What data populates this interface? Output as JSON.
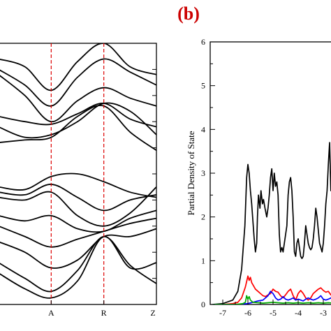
{
  "panel_label": "(b)",
  "chart_data": [
    {
      "type": "line",
      "title": "",
      "xlabel": "",
      "ylabel": "",
      "x_ticks": [
        "A",
        "R",
        "Z"
      ],
      "k_positions": {
        "A": 1,
        "R": 2,
        "Z": 3
      },
      "x_range": [
        0,
        3
      ],
      "y_range": [
        0,
        10
      ],
      "vertical_markers": [
        "A",
        "R"
      ],
      "marker_color": "#dd0000",
      "band_color": "#000000",
      "series": [
        {
          "x": [
            0,
            0.5,
            1,
            1.5,
            2,
            2.5,
            3
          ],
          "values": [
            9.4,
            9.1,
            8.2,
            9.3,
            10.0,
            9.1,
            8.8
          ]
        },
        {
          "x": [
            0,
            0.5,
            1,
            1.5,
            2,
            2.5,
            3
          ],
          "values": [
            9.0,
            8.4,
            7.6,
            8.7,
            9.4,
            8.9,
            8.4
          ]
        },
        {
          "x": [
            0,
            0.5,
            1,
            1.5,
            2,
            2.5,
            3
          ],
          "values": [
            8.8,
            8.0,
            7.0,
            7.8,
            8.3,
            7.9,
            7.6
          ]
        },
        {
          "x": [
            0,
            0.5,
            1,
            1.5,
            2,
            2.5,
            3
          ],
          "values": [
            7.2,
            7.0,
            6.9,
            7.3,
            7.7,
            7.1,
            6.8
          ]
        },
        {
          "x": [
            0,
            0.5,
            1,
            1.5,
            2,
            2.5,
            3
          ],
          "values": [
            6.8,
            6.4,
            6.5,
            7.0,
            7.7,
            7.4,
            6.5
          ]
        },
        {
          "x": [
            0,
            0.5,
            1,
            1.5,
            2,
            2.5,
            3
          ],
          "values": [
            6.2,
            6.3,
            6.4,
            7.2,
            7.6,
            6.6,
            5.9
          ]
        },
        {
          "x": [
            0,
            0.5,
            1,
            1.5,
            2,
            2.5,
            3
          ],
          "values": [
            4.5,
            4.4,
            4.9,
            5.0,
            4.7,
            4.3,
            4.1
          ]
        },
        {
          "x": [
            0,
            0.5,
            1,
            1.5,
            2,
            2.5,
            3
          ],
          "values": [
            4.3,
            4.2,
            4.6,
            4.1,
            3.6,
            4.0,
            4.2
          ]
        },
        {
          "x": [
            0,
            0.5,
            1,
            1.5,
            2,
            2.5,
            3
          ],
          "values": [
            4.1,
            4.0,
            4.3,
            3.4,
            3.0,
            3.5,
            4.5
          ]
        },
        {
          "x": [
            0,
            0.5,
            1,
            1.5,
            2,
            2.5,
            3
          ],
          "values": [
            3.4,
            3.2,
            3.4,
            2.9,
            2.8,
            3.3,
            3.6
          ]
        },
        {
          "x": [
            0,
            0.5,
            1,
            1.5,
            2,
            2.5,
            3
          ],
          "values": [
            3.0,
            2.6,
            2.2,
            2.5,
            2.8,
            3.1,
            3.3
          ]
        },
        {
          "x": [
            0,
            0.5,
            1,
            1.5,
            2,
            2.5,
            3
          ],
          "values": [
            2.4,
            2.0,
            1.4,
            1.7,
            2.6,
            2.6,
            2.9
          ]
        },
        {
          "x": [
            0,
            0.5,
            1,
            1.5,
            2,
            2.5,
            3
          ],
          "values": [
            1.6,
            1.0,
            0.5,
            1.3,
            2.6,
            1.5,
            0.8
          ]
        },
        {
          "x": [
            0,
            0.5,
            1,
            1.5,
            2,
            2.5,
            3
          ],
          "values": [
            1.2,
            0.6,
            0.25,
            0.9,
            2.6,
            1.4,
            1.6
          ]
        }
      ]
    },
    {
      "type": "line",
      "title": "",
      "xlabel": "",
      "ylabel": "Partial Density of State",
      "x_ticks": [
        -7,
        -6,
        -5,
        -4,
        -3
      ],
      "y_ticks": [
        0,
        1,
        2,
        3,
        4,
        5,
        6
      ],
      "xlim": [
        -7.5,
        -2.5
      ],
      "ylim": [
        0,
        6
      ],
      "grid": false,
      "series": [
        {
          "color": "#000000",
          "x": [
            -7.4,
            -7.0,
            -6.6,
            -6.4,
            -6.25,
            -6.12,
            -6.05,
            -6.0,
            -5.95,
            -5.9,
            -5.85,
            -5.8,
            -5.75,
            -5.7,
            -5.65,
            -5.62,
            -5.58,
            -5.52,
            -5.48,
            -5.42,
            -5.38,
            -5.32,
            -5.25,
            -5.2,
            -5.15,
            -5.1,
            -5.05,
            -5.0,
            -4.95,
            -4.9,
            -4.85,
            -4.8,
            -4.75,
            -4.7,
            -4.65,
            -4.6,
            -4.55,
            -4.5,
            -4.45,
            -4.4,
            -4.35,
            -4.3,
            -4.25,
            -4.2,
            -4.15,
            -4.1,
            -4.05,
            -4.0,
            -3.95,
            -3.9,
            -3.85,
            -3.8,
            -3.75,
            -3.7,
            -3.65,
            -3.6,
            -3.55,
            -3.5,
            -3.45,
            -3.4,
            -3.35,
            -3.3,
            -3.25,
            -3.2,
            -3.15,
            -3.1,
            -3.05,
            -3.0,
            -2.95,
            -2.9,
            -2.85,
            -2.8,
            -2.75,
            -2.7,
            -2.65,
            -2.6,
            -2.55
          ],
          "values": [
            0.0,
            0.02,
            0.1,
            0.3,
            0.8,
            1.8,
            2.9,
            3.2,
            3.0,
            2.6,
            2.3,
            1.9,
            1.5,
            1.2,
            1.4,
            2.0,
            2.5,
            2.2,
            2.6,
            2.3,
            2.4,
            2.2,
            2.0,
            2.2,
            2.5,
            2.9,
            3.1,
            2.6,
            3.0,
            2.7,
            2.8,
            2.5,
            1.6,
            1.2,
            1.3,
            1.2,
            1.4,
            1.6,
            1.8,
            2.5,
            2.8,
            2.9,
            2.6,
            2.0,
            1.2,
            1.1,
            1.4,
            1.5,
            1.3,
            1.1,
            1.05,
            1.1,
            1.4,
            1.8,
            1.6,
            1.4,
            1.3,
            1.25,
            1.3,
            1.5,
            1.8,
            2.2,
            2.0,
            1.7,
            1.4,
            1.3,
            1.2,
            1.4,
            1.8,
            2.3,
            2.6,
            3.2,
            3.7,
            2.6,
            3.4,
            2.4,
            2.8
          ]
        },
        {
          "color": "#ff0000",
          "x": [
            -7.4,
            -7.0,
            -6.6,
            -6.4,
            -6.25,
            -6.1,
            -6.0,
            -5.95,
            -5.9,
            -5.85,
            -5.8,
            -5.7,
            -5.6,
            -5.5,
            -5.4,
            -5.3,
            -5.2,
            -5.1,
            -5.0,
            -4.9,
            -4.8,
            -4.7,
            -4.6,
            -4.5,
            -4.4,
            -4.3,
            -4.2,
            -4.1,
            -4.0,
            -3.9,
            -3.8,
            -3.7,
            -3.6,
            -3.5,
            -3.4,
            -3.3,
            -3.2,
            -3.1,
            -3.0,
            -2.9,
            -2.8,
            -2.7,
            -2.6,
            -2.55
          ],
          "values": [
            0.0,
            0.0,
            0.02,
            0.05,
            0.15,
            0.4,
            0.65,
            0.55,
            0.62,
            0.5,
            0.45,
            0.35,
            0.3,
            0.25,
            0.2,
            0.18,
            0.22,
            0.25,
            0.35,
            0.3,
            0.28,
            0.2,
            0.15,
            0.22,
            0.3,
            0.35,
            0.2,
            0.1,
            0.25,
            0.32,
            0.25,
            0.15,
            0.1,
            0.15,
            0.25,
            0.3,
            0.35,
            0.38,
            0.32,
            0.28,
            0.3,
            0.22,
            0.18,
            0.2
          ]
        },
        {
          "color": "#0000ff",
          "x": [
            -7.4,
            -6.5,
            -6.0,
            -5.8,
            -5.6,
            -5.4,
            -5.2,
            -5.1,
            -5.0,
            -4.9,
            -4.8,
            -4.7,
            -4.6,
            -4.5,
            -4.4,
            -4.3,
            -4.2,
            -4.1,
            -4.0,
            -3.9,
            -3.8,
            -3.7,
            -3.6,
            -3.5,
            -3.4,
            -3.3,
            -3.2,
            -3.1,
            -3.0,
            -2.9,
            -2.8,
            -2.7,
            -2.6,
            -2.55
          ],
          "values": [
            0.0,
            0.0,
            0.02,
            0.05,
            0.08,
            0.1,
            0.2,
            0.3,
            0.25,
            0.15,
            0.1,
            0.12,
            0.18,
            0.12,
            0.1,
            0.12,
            0.15,
            0.1,
            0.12,
            0.1,
            0.08,
            0.12,
            0.15,
            0.12,
            0.1,
            0.12,
            0.15,
            0.2,
            0.12,
            0.1,
            0.12,
            0.15,
            0.1,
            0.1
          ]
        },
        {
          "color": "#00aa00",
          "x": [
            -7.4,
            -6.5,
            -6.2,
            -6.1,
            -6.05,
            -6.0,
            -5.95,
            -5.9,
            -5.8,
            -5.6,
            -5.4,
            -5.2,
            -5.0,
            -4.8,
            -4.6,
            -4.4,
            -4.2,
            -4.0,
            -3.8,
            -3.6,
            -3.4,
            -3.2,
            -3.0,
            -2.8,
            -2.6,
            -2.55
          ],
          "values": [
            0.0,
            0.0,
            0.02,
            0.05,
            0.2,
            0.12,
            0.18,
            0.1,
            0.05,
            0.04,
            0.03,
            0.04,
            0.05,
            0.04,
            0.03,
            0.04,
            0.03,
            0.04,
            0.03,
            0.04,
            0.03,
            0.04,
            0.03,
            0.04,
            0.03,
            0.03
          ]
        }
      ]
    }
  ]
}
